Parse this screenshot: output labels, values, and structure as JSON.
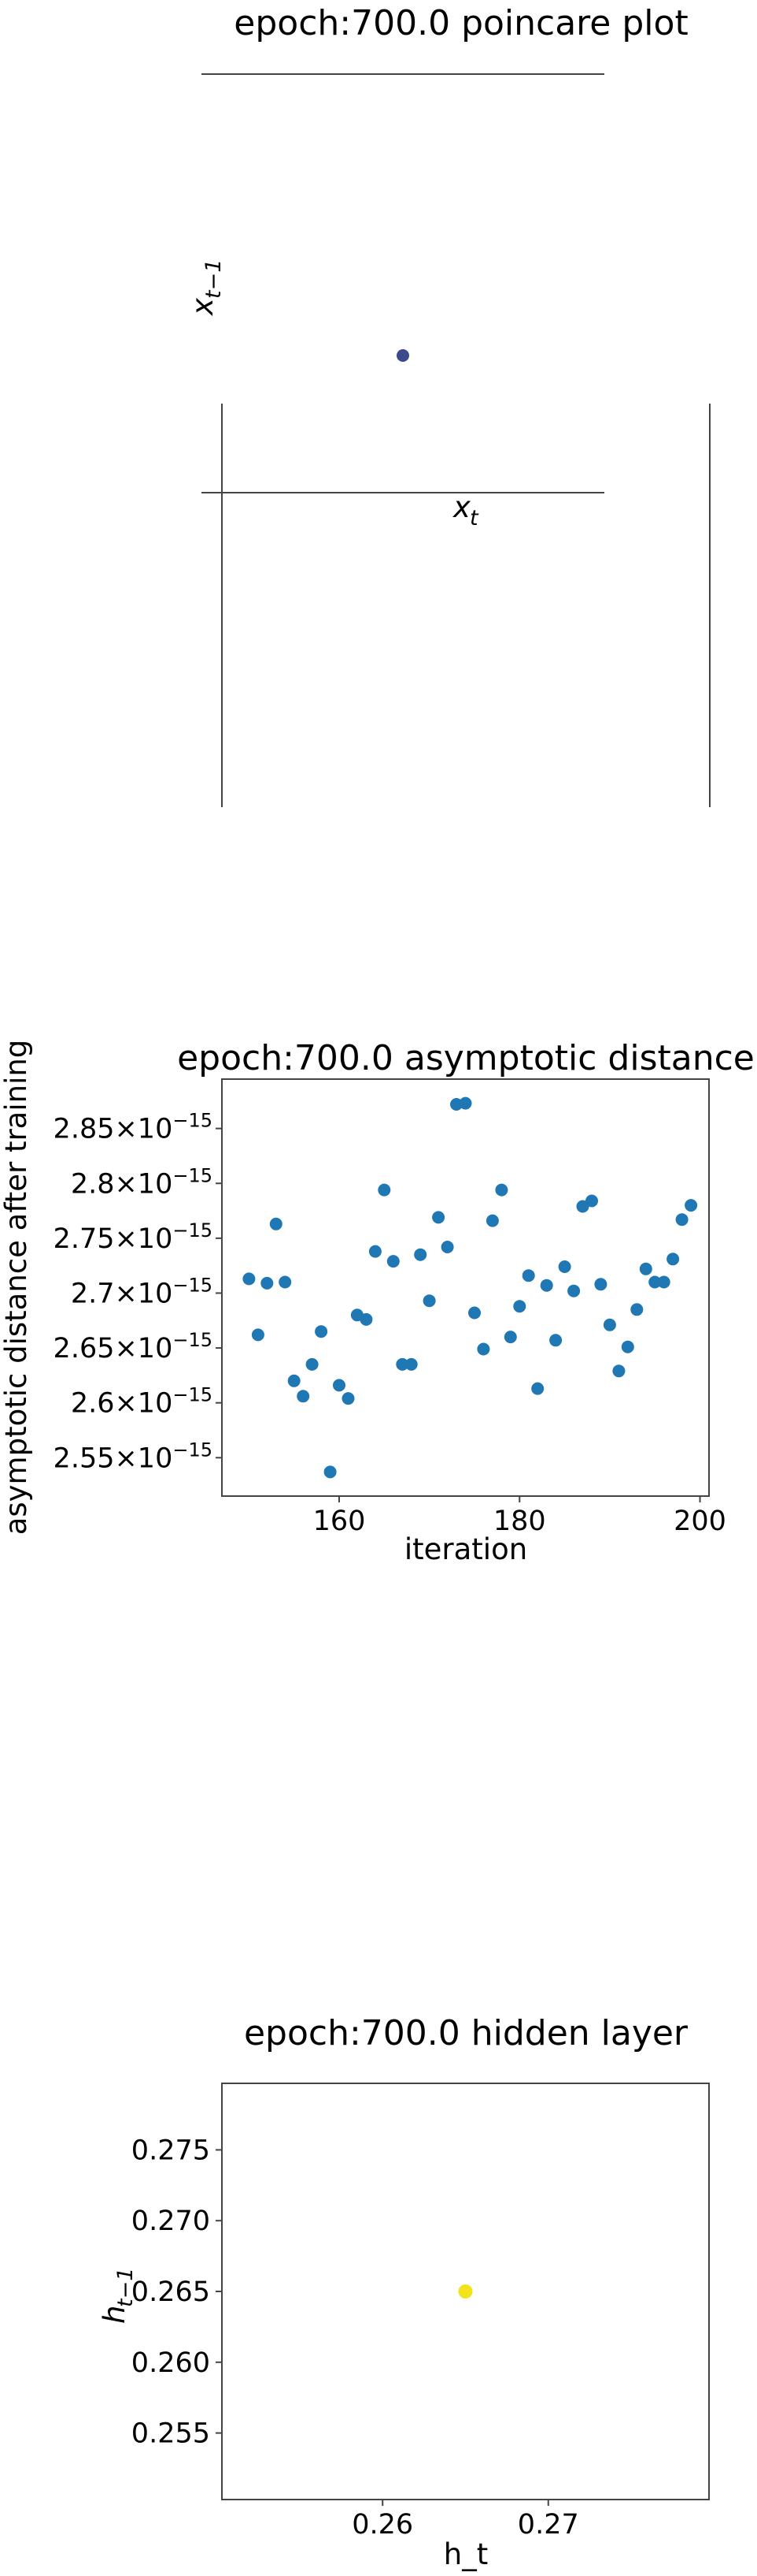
{
  "colors": {
    "poincare_point": "#3b4a8b",
    "scatter_point": "#1f77b4",
    "hidden_point": "#f2e31d",
    "axis": "#444444"
  },
  "chart_data": [
    {
      "type": "scatter",
      "title": "epoch:700.0 poincare plot",
      "xlabel": "x_t",
      "ylabel": "x_{t-1}",
      "points": [
        {
          "x": 0,
          "y": 0
        }
      ],
      "grid": false,
      "legend": "none"
    },
    {
      "type": "scatter",
      "title": "epoch:700.0 asymptotic distance",
      "xlabel": "iteration",
      "ylabel": "asymptotic distance after training",
      "xlim": [
        147,
        201
      ],
      "ylim": [
        2.515e-15,
        2.895e-15
      ],
      "xticks": [
        160,
        180,
        200
      ],
      "yticks": [
        {
          "mant": "2.55",
          "exp": "−15",
          "value": 2.55e-15
        },
        {
          "mant": "2.6",
          "exp": "−15",
          "value": 2.6e-15
        },
        {
          "mant": "2.65",
          "exp": "−15",
          "value": 2.65e-15
        },
        {
          "mant": "2.7",
          "exp": "−15",
          "value": 2.7e-15
        },
        {
          "mant": "2.75",
          "exp": "−15",
          "value": 2.75e-15
        },
        {
          "mant": "2.8",
          "exp": "−15",
          "value": 2.8e-15
        },
        {
          "mant": "2.85",
          "exp": "−15",
          "value": 2.85e-15
        }
      ],
      "x": [
        150,
        151,
        152,
        153,
        154,
        155,
        156,
        157,
        158,
        159,
        160,
        161,
        162,
        163,
        164,
        165,
        166,
        167,
        168,
        169,
        170,
        171,
        172,
        173,
        174,
        175,
        176,
        177,
        178,
        179,
        180,
        181,
        182,
        183,
        184,
        185,
        186,
        187,
        188,
        189,
        190,
        191,
        192,
        193,
        194,
        195,
        196,
        197,
        198,
        199
      ],
      "y": [
        2.713e-15,
        2.662e-15,
        2.709e-15,
        2.763e-15,
        2.71e-15,
        2.62e-15,
        2.606e-15,
        2.635e-15,
        2.665e-15,
        2.537e-15,
        2.616e-15,
        2.604e-15,
        2.68e-15,
        2.676e-15,
        2.738e-15,
        2.794e-15,
        2.729e-15,
        2.635e-15,
        2.635e-15,
        2.735e-15,
        2.693e-15,
        2.769e-15,
        2.742e-15,
        2.872e-15,
        2.873e-15,
        2.682e-15,
        2.649e-15,
        2.766e-15,
        2.794e-15,
        2.66e-15,
        2.688e-15,
        2.716e-15,
        2.613e-15,
        2.707e-15,
        2.657e-15,
        2.724e-15,
        2.702e-15,
        2.779e-15,
        2.784e-15,
        2.708e-15,
        2.671e-15,
        2.629e-15,
        2.651e-15,
        2.685e-15,
        2.722e-15,
        2.71e-15,
        2.71e-15,
        2.731e-15,
        2.767e-15,
        2.78e-15
      ],
      "grid": false,
      "legend": "none"
    },
    {
      "type": "scatter",
      "title": "epoch:700.0 hidden layer",
      "xlabel": "h_t",
      "ylabel": "h_{t-1}",
      "xlim": [
        0.2503,
        0.2797
      ],
      "ylim": [
        0.2503,
        0.2797
      ],
      "xticks": [
        "0.26",
        "0.27"
      ],
      "yticks": [
        "0.255",
        "0.260",
        "0.265",
        "0.270",
        "0.275"
      ],
      "points": [
        {
          "x": 0.265,
          "y": 0.265
        }
      ],
      "grid": false,
      "legend": "none"
    }
  ]
}
